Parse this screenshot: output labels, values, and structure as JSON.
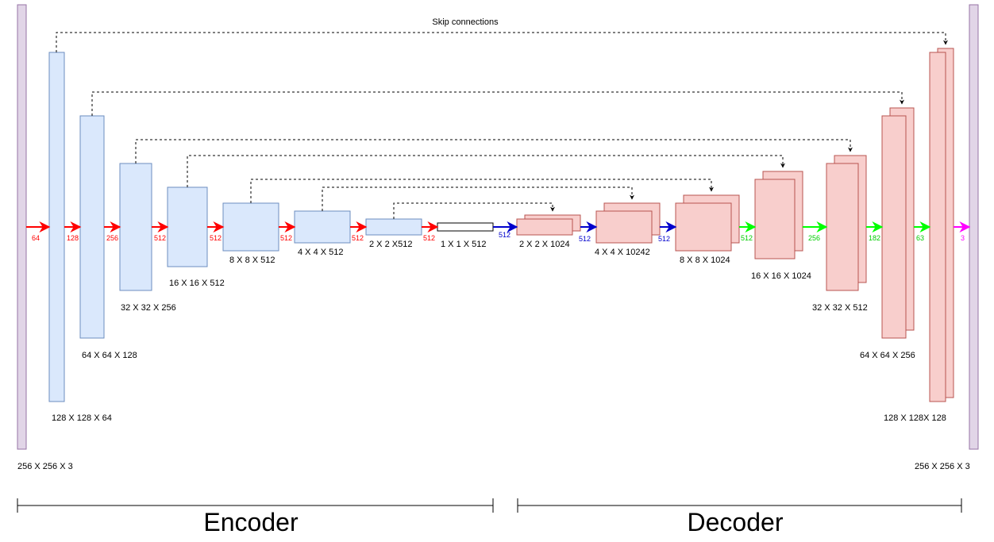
{
  "title": "Skip connections",
  "sections": {
    "encoder": "Encoder",
    "decoder": "Decoder"
  },
  "colors": {
    "input_fill": "#e1d5e7",
    "input_stroke": "#9673a6",
    "encoder_fill": "#dae8fc",
    "encoder_stroke": "#6c8ebf",
    "bottleneck_fill": "#ffffff",
    "bottleneck_stroke": "#000000",
    "decoder_fill": "#f8cecc",
    "decoder_stroke": "#b85450",
    "arrow_encoder": "#ff0000",
    "arrow_bottleneck": "#0000cc",
    "arrow_decoder": "#00ff00",
    "arrow_output": "#ff00ff",
    "skip": "#000000"
  },
  "blocks": {
    "input": "256 X 256 X 3",
    "encoder": [
      "128 X 128 X 64",
      "64 X 64 X 128",
      "32 X 32 X 256",
      "16 X 16 X 512",
      "8 X 8 X 512",
      "4 X 4 X 512",
      "2 X 2 X512"
    ],
    "bottleneck": "1 X 1 X 512",
    "decoder": [
      "2 X 2 X 1024",
      "4 X 4 X 10242",
      "8 X 8 X 1024",
      "16 X 16 X 1024",
      "32 X 32 X 512",
      "64 X 64 X 256",
      "128 X 128X 128"
    ],
    "output": "256 X 256 X 3"
  },
  "channels": {
    "encoder": [
      "64",
      "128",
      "256",
      "512",
      "512",
      "512",
      "512",
      "512"
    ],
    "bottleneck": [
      "512",
      "512",
      "512"
    ],
    "decoder": [
      "512",
      "256",
      "182",
      "63"
    ],
    "output": "3"
  }
}
